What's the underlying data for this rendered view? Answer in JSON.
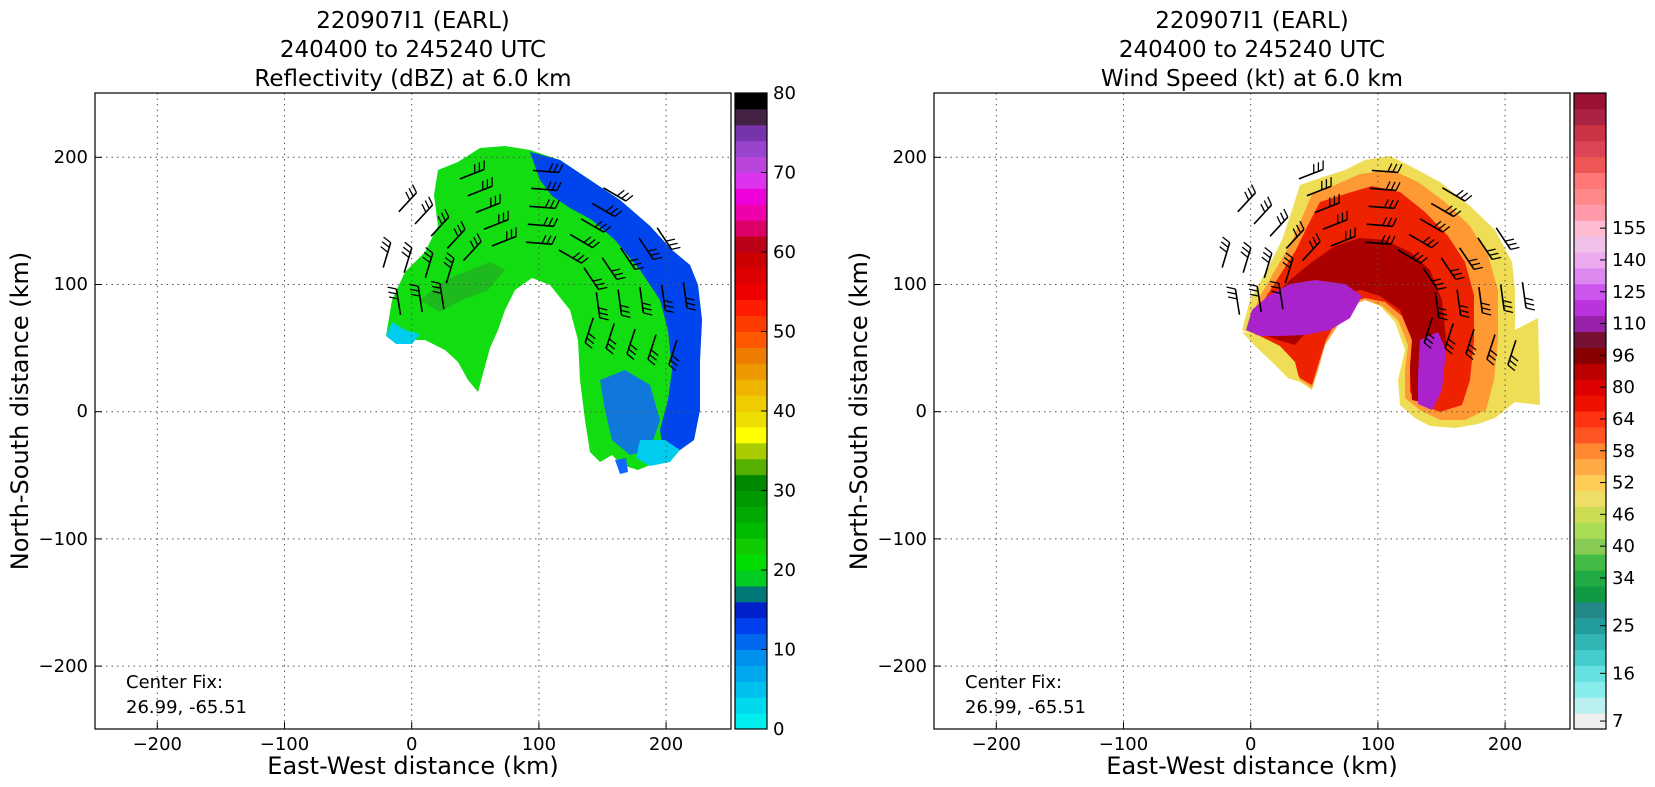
{
  "chart_data": [
    {
      "type": "heatmap",
      "title_lines": [
        "220907I1 (EARL)",
        "240400 to 245240 UTC",
        "Reflectivity (dBZ) at 6.0 km"
      ],
      "xlabel": "East-West distance (km)",
      "ylabel": "North-South distance (km)",
      "xlim": [
        -250,
        250
      ],
      "ylim": [
        -250,
        250
      ],
      "xticks": [
        -200,
        -100,
        0,
        100,
        200
      ],
      "yticks": [
        -200,
        -100,
        0,
        100,
        200
      ],
      "xtick_labels": [
        "−200",
        "−100",
        "0",
        "100",
        "200"
      ],
      "ytick_labels": [
        "−200",
        "−100",
        "0",
        "100",
        "200"
      ],
      "grid": true,
      "annotation_lines": [
        "Center Fix:",
        "26.99, -65.51"
      ],
      "colorbar": {
        "min": 0,
        "max": 80,
        "tick_values": [
          0,
          10,
          20,
          30,
          40,
          50,
          60,
          70,
          80
        ],
        "tick_labels": [
          "0",
          "10",
          "20",
          "30",
          "40",
          "50",
          "60",
          "70",
          "80"
        ],
        "colors": [
          "#00eeee",
          "#00d8ee",
          "#00c0ee",
          "#00a8ee",
          "#0090ee",
          "#0068ee",
          "#0040ee",
          "#0020cc",
          "#007878",
          "#00cc22",
          "#00dd00",
          "#11cc00",
          "#00bb00",
          "#00aa00",
          "#009900",
          "#008800",
          "#55b000",
          "#a8cc00",
          "#ffff00",
          "#eedd00",
          "#eecc00",
          "#eeb400",
          "#ee9800",
          "#ee7c00",
          "#ff5800",
          "#ff3c00",
          "#ff1c00",
          "#ee0000",
          "#dd0000",
          "#cc0000",
          "#bb0018",
          "#dd0066",
          "#ee00aa",
          "#ee00dd",
          "#dd33ee",
          "#bb44dd",
          "#9944cc",
          "#7733aa",
          "#442244",
          "#000000"
        ]
      },
      "field_colors": {
        "main": "#11dd11",
        "dark": "#22aa22",
        "high": "#0044ee",
        "mid": "#1166ff",
        "edge": "#00ccee"
      }
    },
    {
      "type": "heatmap",
      "title_lines": [
        "220907I1 (EARL)",
        "240400 to 245240 UTC",
        "Wind Speed (kt) at 6.0 km"
      ],
      "xlabel": "East-West distance (km)",
      "ylabel": "North-South distance (km)",
      "xlim": [
        -250,
        250
      ],
      "ylim": [
        -250,
        250
      ],
      "xticks": [
        -200,
        -100,
        0,
        100,
        200
      ],
      "yticks": [
        -200,
        -100,
        0,
        100,
        200
      ],
      "xtick_labels": [
        "−200",
        "−100",
        "0",
        "100",
        "200"
      ],
      "ytick_labels": [
        "−200",
        "−100",
        "0",
        "100",
        "200"
      ],
      "grid": true,
      "annotation_lines": [
        "Center Fix:",
        "26.99, -65.51"
      ],
      "colorbar": {
        "tick_labels": [
          "7",
          "16",
          "25",
          "34",
          "40",
          "46",
          "52",
          "58",
          "64",
          "80",
          "96",
          "110",
          "125",
          "140",
          "155"
        ],
        "tick_bins": [
          0,
          3,
          6,
          9,
          11,
          13,
          15,
          17,
          19,
          21,
          23,
          25,
          27,
          29,
          31
        ],
        "colors": [
          "#eeeeee",
          "#bbf0f0",
          "#88ecec",
          "#66e0e0",
          "#44cccc",
          "#33b4b4",
          "#229c9c",
          "#228888",
          "#119944",
          "#22aa44",
          "#44bb44",
          "#88cc55",
          "#aadd55",
          "#ccdd55",
          "#eedd66",
          "#ffcc55",
          "#ffaa44",
          "#ff8833",
          "#ff5522",
          "#ff3311",
          "#ee1100",
          "#dd0000",
          "#bb0000",
          "#880000",
          "#771133",
          "#9922aa",
          "#bb33dd",
          "#cc55ee",
          "#dd88ee",
          "#eeaaee",
          "#f0c0e8",
          "#ffbbd0",
          "#ff99aa",
          "#ff8888",
          "#ff7777",
          "#ee5555",
          "#dd4455",
          "#cc3344",
          "#aa2244",
          "#991133"
        ]
      },
      "field_colors": {
        "outer": "#eedd55",
        "orange": "#ff9933",
        "red": "#ee2200",
        "darkred": "#aa0000",
        "purple": "#aa22cc"
      }
    }
  ]
}
